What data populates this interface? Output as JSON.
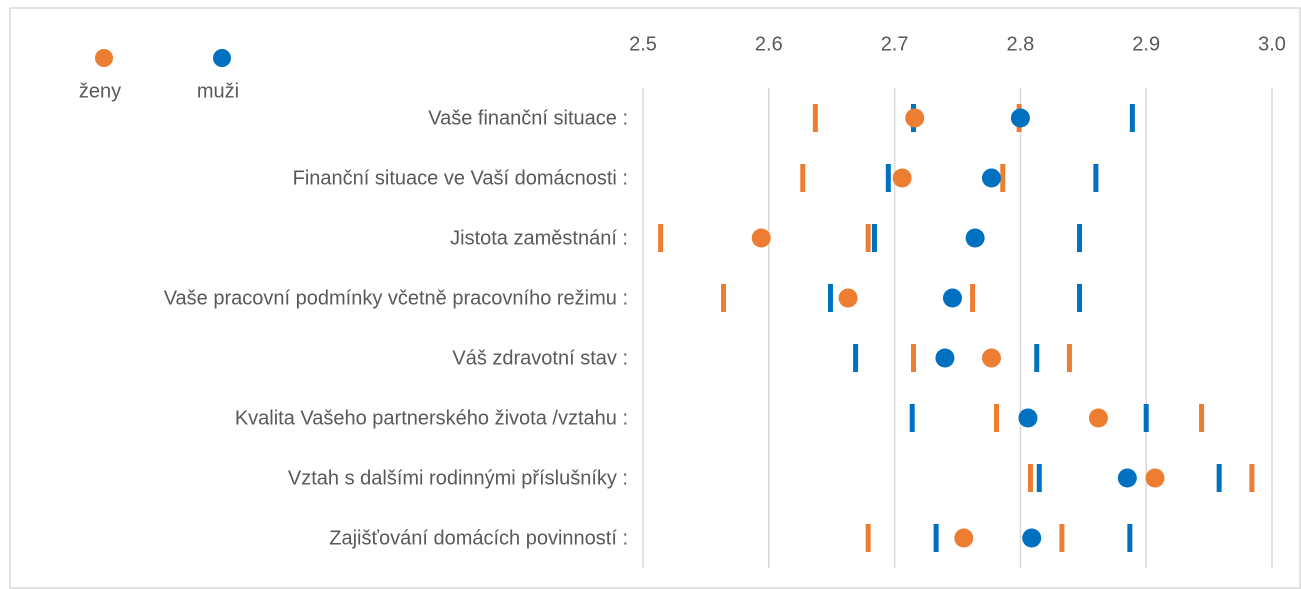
{
  "chart_data": {
    "type": "dot_interval",
    "categories": [
      "Vaše finanční situace :",
      "Finanční situace ve Vaší domácnosti :",
      "Jistota zaměstnání :",
      "Vaše pracovní podmínky včetně pracovního režimu :",
      "Váš zdravotní stav :",
      "Kvalita Vašeho partnerského života /vztahu :",
      "Vztah s dalšími rodinnými příslušníky :",
      "Zajišťování domácích povinností :"
    ],
    "series": [
      {
        "name": "ženy",
        "color": "#ED7D31",
        "values": [
          2.716,
          2.706,
          2.594,
          2.663,
          2.777,
          2.862,
          2.907,
          2.755
        ],
        "low": [
          2.637,
          2.627,
          2.514,
          2.564,
          2.715,
          2.781,
          2.808,
          2.679
        ],
        "high": [
          2.799,
          2.786,
          2.679,
          2.762,
          2.839,
          2.944,
          2.984,
          2.833
        ]
      },
      {
        "name": "muži",
        "color": "#0070C0",
        "values": [
          2.8,
          2.777,
          2.764,
          2.746,
          2.74,
          2.806,
          2.885,
          2.809
        ],
        "low": [
          2.715,
          2.695,
          2.684,
          2.649,
          2.669,
          2.714,
          2.815,
          2.733
        ],
        "high": [
          2.889,
          2.86,
          2.847,
          2.847,
          2.813,
          2.9,
          2.958,
          2.887
        ]
      }
    ],
    "xlim": [
      2.5,
      3.0
    ],
    "xticks": [
      2.5,
      2.6,
      2.7,
      2.8,
      2.9,
      {
        "value": 3.0,
        "label": "3.0"
      }
    ],
    "grid": true
  }
}
